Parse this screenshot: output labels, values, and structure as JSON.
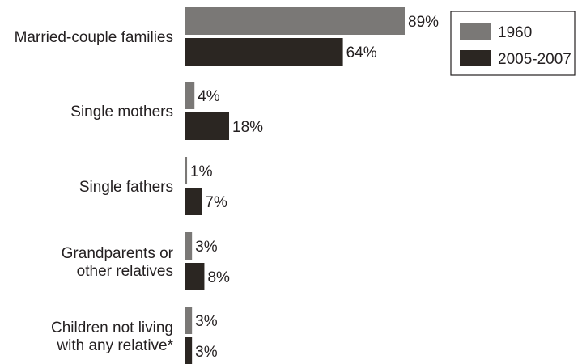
{
  "chart_data": {
    "type": "bar",
    "orientation": "horizontal",
    "categories": [
      [
        "Married-couple families"
      ],
      [
        "Single mothers"
      ],
      [
        "Single fathers"
      ],
      [
        "Grandparents or",
        "other relatives"
      ],
      [
        "Children not living",
        "with any relative*"
      ]
    ],
    "series": [
      {
        "name": "1960",
        "color": "#7a7876",
        "values": [
          89,
          4,
          1,
          3,
          3
        ],
        "labels": [
          "89%",
          "4%",
          "1%",
          "3%",
          "3%"
        ]
      },
      {
        "name": "2005-2007",
        "color": "#2b2622",
        "values": [
          64,
          18,
          7,
          8,
          3
        ],
        "labels": [
          "64%",
          "18%",
          "7%",
          "8%",
          "3%"
        ]
      }
    ],
    "xlim": [
      0,
      100
    ],
    "unit": "%",
    "grid": false,
    "legend": "top-right"
  }
}
